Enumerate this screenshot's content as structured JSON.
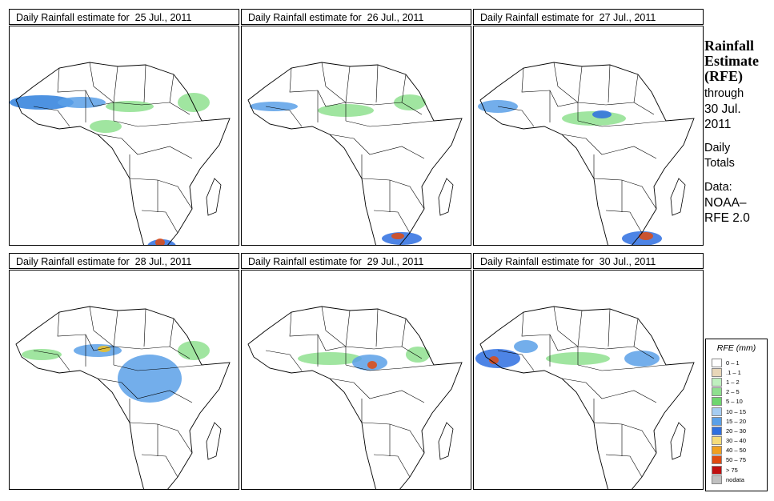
{
  "panels": [
    {
      "title": "Daily Rainfall estimate for  25 Jul., 2011",
      "blobs": [
        {
          "x": 40,
          "y": 95,
          "rx": 40,
          "ry": 9,
          "c": "#2e7fdc"
        },
        {
          "x": 90,
          "y": 95,
          "rx": 30,
          "ry": 7,
          "c": "#5aa0e8"
        },
        {
          "x": 150,
          "y": 100,
          "rx": 30,
          "ry": 7,
          "c": "#8fe08f"
        },
        {
          "x": 190,
          "y": 275,
          "rx": 18,
          "ry": 9,
          "c": "#2e6fe0"
        },
        {
          "x": 188,
          "y": 270,
          "rx": 6,
          "ry": 5,
          "c": "#e04a10"
        },
        {
          "x": 120,
          "y": 125,
          "rx": 20,
          "ry": 8,
          "c": "#8fe08f"
        },
        {
          "x": 230,
          "y": 95,
          "rx": 20,
          "ry": 12,
          "c": "#8fe08f"
        }
      ]
    },
    {
      "title": "Daily Rainfall estimate for  26 Jul., 2011",
      "blobs": [
        {
          "x": 40,
          "y": 100,
          "rx": 30,
          "ry": 6,
          "c": "#5aa0e8"
        },
        {
          "x": 130,
          "y": 105,
          "rx": 35,
          "ry": 8,
          "c": "#8fe08f"
        },
        {
          "x": 210,
          "y": 95,
          "rx": 20,
          "ry": 10,
          "c": "#8fe08f"
        },
        {
          "x": 200,
          "y": 265,
          "rx": 25,
          "ry": 8,
          "c": "#2e6fe0"
        },
        {
          "x": 195,
          "y": 262,
          "rx": 8,
          "ry": 4,
          "c": "#e04a10"
        }
      ]
    },
    {
      "title": "Daily Rainfall estimate for  27 Jul., 2011",
      "blobs": [
        {
          "x": 30,
          "y": 100,
          "rx": 25,
          "ry": 8,
          "c": "#5aa0e8"
        },
        {
          "x": 150,
          "y": 115,
          "rx": 40,
          "ry": 9,
          "c": "#8fe08f"
        },
        {
          "x": 160,
          "y": 110,
          "rx": 12,
          "ry": 5,
          "c": "#2e6fe0"
        },
        {
          "x": 210,
          "y": 265,
          "rx": 25,
          "ry": 9,
          "c": "#2e6fe0"
        },
        {
          "x": 215,
          "y": 262,
          "rx": 9,
          "ry": 5,
          "c": "#e04a10"
        }
      ]
    },
    {
      "title": "Daily Rainfall estimate for  28 Jul., 2011",
      "blobs": [
        {
          "x": 110,
          "y": 100,
          "rx": 30,
          "ry": 8,
          "c": "#5aa0e8"
        },
        {
          "x": 118,
          "y": 98,
          "rx": 8,
          "ry": 4,
          "c": "#f0c020"
        },
        {
          "x": 175,
          "y": 135,
          "rx": 40,
          "ry": 30,
          "c": "#5aa0e8"
        },
        {
          "x": 40,
          "y": 105,
          "rx": 25,
          "ry": 7,
          "c": "#8fe08f"
        },
        {
          "x": 230,
          "y": 100,
          "rx": 20,
          "ry": 12,
          "c": "#8fe08f"
        }
      ]
    },
    {
      "title": "Daily Rainfall estimate for  29 Jul., 2011",
      "blobs": [
        {
          "x": 110,
          "y": 110,
          "rx": 40,
          "ry": 8,
          "c": "#8fe08f"
        },
        {
          "x": 160,
          "y": 115,
          "rx": 22,
          "ry": 10,
          "c": "#5aa0e8"
        },
        {
          "x": 163,
          "y": 118,
          "rx": 6,
          "ry": 5,
          "c": "#e04a10"
        },
        {
          "x": 220,
          "y": 105,
          "rx": 15,
          "ry": 10,
          "c": "#8fe08f"
        }
      ]
    },
    {
      "title": "Daily Rainfall estimate for  30 Jul., 2011",
      "blobs": [
        {
          "x": 30,
          "y": 110,
          "rx": 28,
          "ry": 12,
          "c": "#2e6fe0"
        },
        {
          "x": 25,
          "y": 112,
          "rx": 6,
          "ry": 5,
          "c": "#e04a10"
        },
        {
          "x": 65,
          "y": 95,
          "rx": 15,
          "ry": 8,
          "c": "#5aa0e8"
        },
        {
          "x": 130,
          "y": 110,
          "rx": 40,
          "ry": 8,
          "c": "#8fe08f"
        },
        {
          "x": 210,
          "y": 110,
          "rx": 22,
          "ry": 10,
          "c": "#5aa0e8"
        }
      ]
    }
  ],
  "side": {
    "title1": "Rainfall",
    "title2": "Estimate",
    "title3": "(RFE)",
    "through": "through",
    "date1": "30 Jul.",
    "date2": "2011",
    "daily": "Daily",
    "totals": "Totals",
    "data": "Data:",
    "source1": "NOAA–",
    "source2": "RFE 2.0"
  },
  "legend": {
    "title": "RFE (mm)",
    "items": [
      {
        "label": "0 – 1",
        "color": "#ffffff"
      },
      {
        "label": ".1 – 1",
        "color": "#e8d6b8"
      },
      {
        "label": "1 – 2",
        "color": "#bff0bf"
      },
      {
        "label": "2 – 5",
        "color": "#8fe08f"
      },
      {
        "label": "5 – 10",
        "color": "#6fd66f"
      },
      {
        "label": "10 – 15",
        "color": "#a6cdf2"
      },
      {
        "label": "15 – 20",
        "color": "#5aa0e8"
      },
      {
        "label": "20 – 30",
        "color": "#2e6fe0"
      },
      {
        "label": "30 – 40",
        "color": "#f5dc7a"
      },
      {
        "label": "40 – 50",
        "color": "#f0a020"
      },
      {
        "label": "50 – 75",
        "color": "#e04a10"
      },
      {
        "label": "> 75",
        "color": "#c01010"
      },
      {
        "label": "nodata",
        "color": "#c0c0c0"
      }
    ]
  }
}
